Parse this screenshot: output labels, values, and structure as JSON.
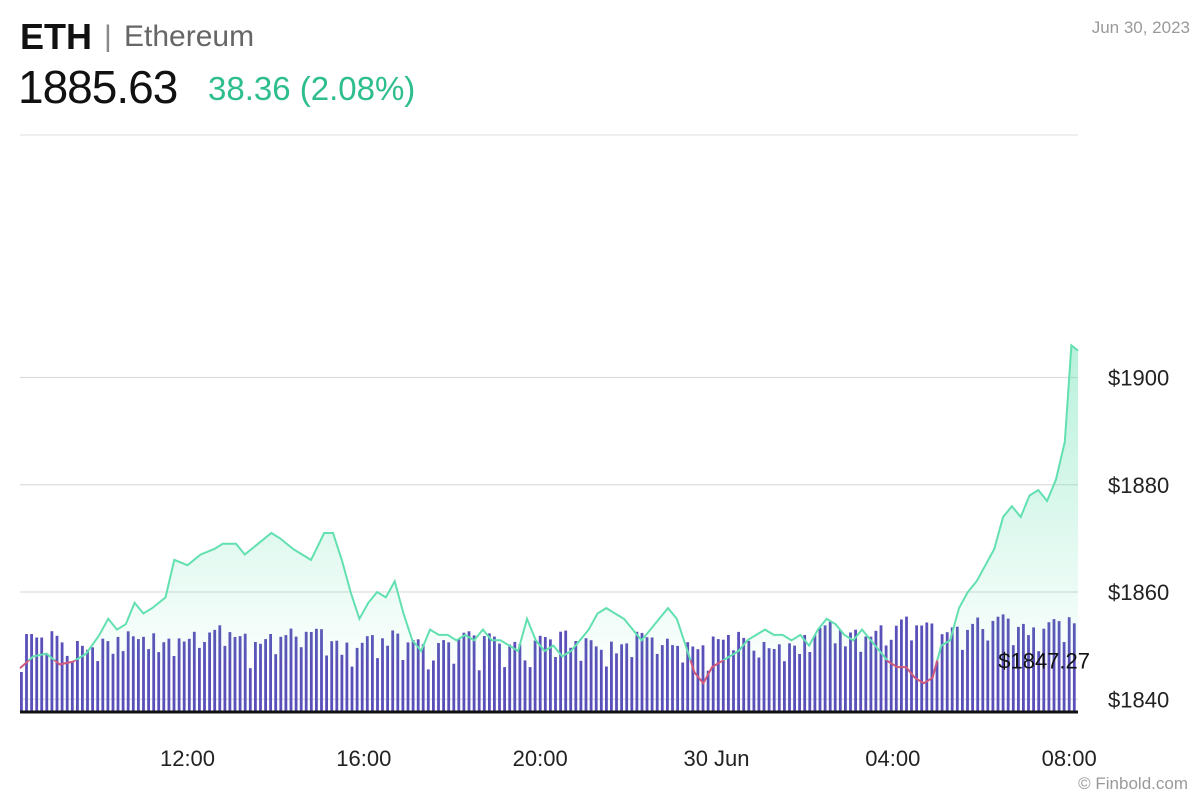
{
  "header": {
    "symbol": "ETH",
    "separator": "|",
    "name": "Ethereum",
    "price": "1885.63",
    "change": "38.36 (2.08%)",
    "date": "Jun 30, 2023",
    "credit": "© Finbold.com"
  },
  "colors": {
    "line": "#62e0b0",
    "line_down": "#d0597c",
    "volume": "#5a50b9",
    "grid": "#dddddd",
    "change": "#2dbd8f"
  },
  "chart_data": {
    "type": "line",
    "title": "",
    "xlabel": "",
    "ylabel": "",
    "x_tick_labels": [
      "12:00",
      "16:00",
      "20:00",
      "30 Jun",
      "04:00",
      "08:00"
    ],
    "x_tick_hours": [
      12,
      16,
      20,
      24,
      28,
      32
    ],
    "xlim_hours": [
      8.2,
      32.2
    ],
    "ylim": [
      1838,
      1918
    ],
    "y_tick_values": [
      1840,
      1860,
      1880,
      1900
    ],
    "y_tick_labels": [
      "$1900",
      "$1880",
      "$1860",
      "$1840"
    ],
    "grid": true,
    "open_price_label": "$1847.27",
    "open_price": 1847.27,
    "series": [
      {
        "points": [
          [
            8.2,
            1845.8
          ],
          [
            8.5,
            1848
          ],
          [
            8.8,
            1848.5
          ],
          [
            9.1,
            1846.5
          ],
          [
            9.4,
            1847
          ],
          [
            9.7,
            1848.5
          ],
          [
            10.0,
            1852
          ],
          [
            10.2,
            1855
          ],
          [
            10.4,
            1853
          ],
          [
            10.6,
            1854
          ],
          [
            10.8,
            1858
          ],
          [
            11.0,
            1856
          ],
          [
            11.2,
            1857
          ],
          [
            11.5,
            1859
          ],
          [
            11.7,
            1866
          ],
          [
            12.0,
            1865
          ],
          [
            12.3,
            1867
          ],
          [
            12.6,
            1868
          ],
          [
            12.8,
            1869
          ],
          [
            13.1,
            1869
          ],
          [
            13.3,
            1867
          ],
          [
            13.6,
            1869
          ],
          [
            13.9,
            1871
          ],
          [
            14.1,
            1870
          ],
          [
            14.4,
            1868
          ],
          [
            14.6,
            1867
          ],
          [
            14.8,
            1866
          ],
          [
            15.1,
            1871
          ],
          [
            15.3,
            1871
          ],
          [
            15.5,
            1866
          ],
          [
            15.7,
            1860
          ],
          [
            15.9,
            1855
          ],
          [
            16.1,
            1858
          ],
          [
            16.3,
            1860
          ],
          [
            16.5,
            1859
          ],
          [
            16.7,
            1862
          ],
          [
            16.9,
            1856
          ],
          [
            17.1,
            1851
          ],
          [
            17.3,
            1849
          ],
          [
            17.5,
            1853
          ],
          [
            17.7,
            1852
          ],
          [
            17.9,
            1852
          ],
          [
            18.1,
            1851
          ],
          [
            18.3,
            1852
          ],
          [
            18.5,
            1851
          ],
          [
            18.7,
            1853
          ],
          [
            18.9,
            1851
          ],
          [
            19.1,
            1851
          ],
          [
            19.3,
            1850
          ],
          [
            19.5,
            1849
          ],
          [
            19.7,
            1855
          ],
          [
            19.9,
            1851
          ],
          [
            20.1,
            1849
          ],
          [
            20.3,
            1850
          ],
          [
            20.5,
            1848
          ],
          [
            20.7,
            1849
          ],
          [
            20.9,
            1851
          ],
          [
            21.1,
            1853
          ],
          [
            21.3,
            1856
          ],
          [
            21.5,
            1857
          ],
          [
            21.7,
            1856
          ],
          [
            21.9,
            1855
          ],
          [
            22.1,
            1853
          ],
          [
            22.3,
            1851
          ],
          [
            22.5,
            1853
          ],
          [
            22.7,
            1855
          ],
          [
            22.9,
            1857
          ],
          [
            23.1,
            1855
          ],
          [
            23.3,
            1850
          ],
          [
            23.5,
            1845
          ],
          [
            23.7,
            1843
          ],
          [
            23.9,
            1846
          ],
          [
            24.1,
            1847
          ],
          [
            24.3,
            1848
          ],
          [
            24.5,
            1849
          ],
          [
            24.7,
            1851
          ],
          [
            24.9,
            1852
          ],
          [
            25.1,
            1853
          ],
          [
            25.3,
            1852
          ],
          [
            25.5,
            1852
          ],
          [
            25.7,
            1851
          ],
          [
            25.9,
            1852
          ],
          [
            26.1,
            1850
          ],
          [
            26.3,
            1853
          ],
          [
            26.5,
            1855
          ],
          [
            26.7,
            1854
          ],
          [
            26.9,
            1852
          ],
          [
            27.1,
            1851
          ],
          [
            27.3,
            1853
          ],
          [
            27.5,
            1851
          ],
          [
            27.7,
            1849
          ],
          [
            27.9,
            1847
          ],
          [
            28.1,
            1846
          ],
          [
            28.3,
            1846
          ],
          [
            28.5,
            1844
          ],
          [
            28.7,
            1843
          ],
          [
            28.9,
            1844
          ],
          [
            29.1,
            1850
          ],
          [
            29.3,
            1851
          ],
          [
            29.5,
            1857
          ],
          [
            29.7,
            1860
          ],
          [
            29.9,
            1862
          ],
          [
            30.1,
            1865
          ],
          [
            30.3,
            1868
          ],
          [
            30.5,
            1874
          ],
          [
            30.7,
            1876
          ],
          [
            30.9,
            1874
          ],
          [
            31.1,
            1878
          ],
          [
            31.3,
            1879
          ],
          [
            31.5,
            1877
          ],
          [
            31.7,
            1881
          ],
          [
            31.9,
            1888
          ],
          [
            32.05,
            1906
          ],
          [
            32.2,
            1905
          ]
        ]
      }
    ]
  }
}
